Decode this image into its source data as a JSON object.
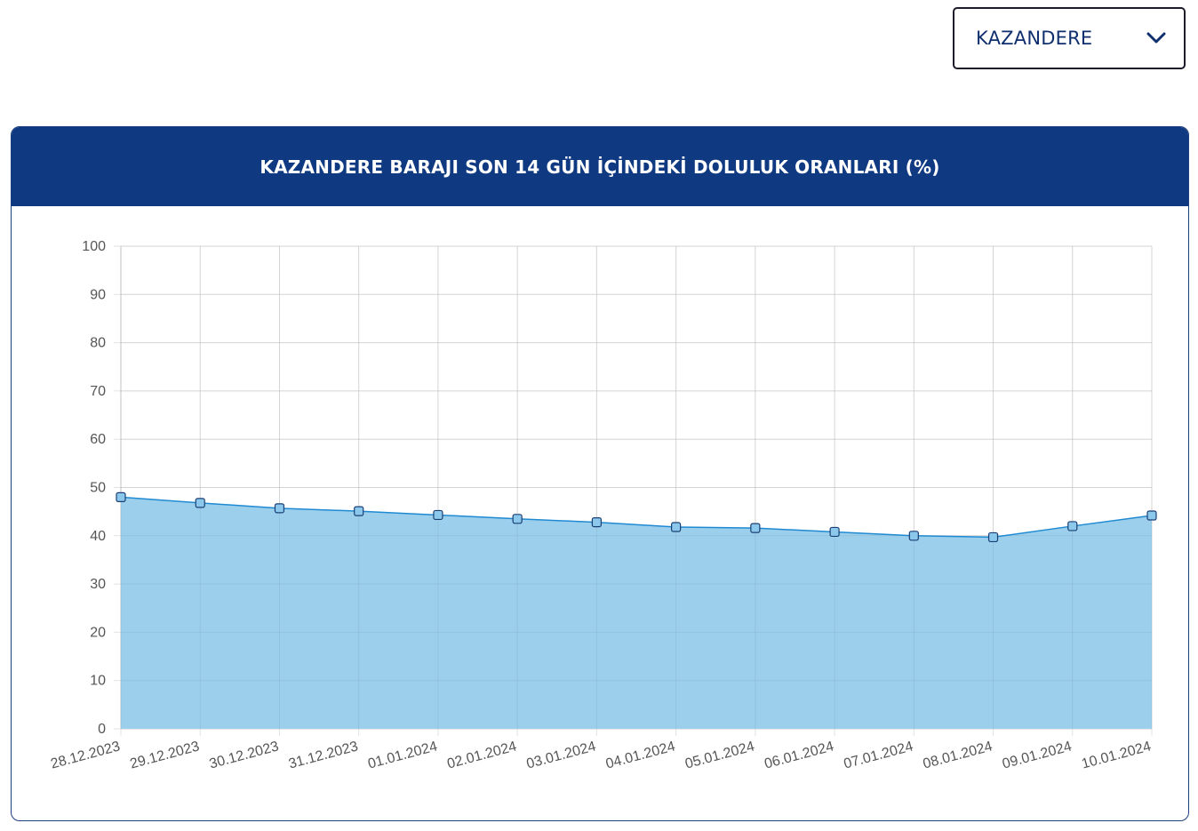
{
  "dam_selector": {
    "selected": "KAZANDERE",
    "icon": "chevron-down-icon"
  },
  "header": {
    "title": "KAZANDERE BARAJI SON 14 GÜN İÇİNDEKİ DOLULUK ORANLARI (%)"
  },
  "colors": {
    "header_bg": "#0f3980",
    "line": "#1f8ad2",
    "fill": "#9ccfec",
    "point_fill": "#8cc7ec",
    "grid": "#e2e2e2"
  },
  "chart_data": {
    "type": "area",
    "title": "KAZANDERE BARAJI SON 14 GÜN İÇİNDEKİ DOLULUK ORANLARI (%)",
    "xlabel": "",
    "ylabel": "",
    "categories": [
      "28.12.2023",
      "29.12.2023",
      "30.12.2023",
      "31.12.2023",
      "01.01.2024",
      "02.01.2024",
      "03.01.2024",
      "04.01.2024",
      "05.01.2024",
      "06.01.2024",
      "07.01.2024",
      "08.01.2024",
      "09.01.2024",
      "10.01.2024"
    ],
    "values": [
      48.0,
      46.8,
      45.7,
      45.1,
      44.3,
      43.5,
      42.8,
      41.8,
      41.6,
      40.8,
      40.0,
      39.7,
      42.0,
      44.2
    ],
    "ylim": [
      0,
      100
    ],
    "yticks": [
      0,
      10,
      20,
      30,
      40,
      50,
      60,
      70,
      80,
      90,
      100
    ],
    "grid": true,
    "legend": "none"
  }
}
